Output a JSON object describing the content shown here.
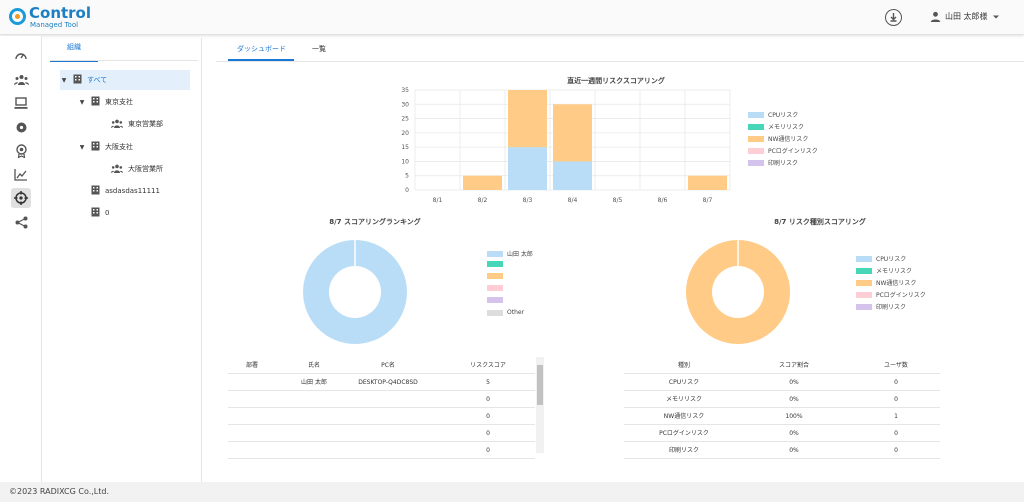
{
  "app": {
    "logo_title": "Control",
    "logo_subtitle": "Managed Tool",
    "user_name": "山田 太郎様"
  },
  "sidebar": {
    "items": [
      {
        "icon": "speedometer-icon"
      },
      {
        "icon": "users-icon"
      },
      {
        "icon": "computer-icon"
      },
      {
        "icon": "disc-icon"
      },
      {
        "icon": "badge-icon"
      },
      {
        "icon": "chart-icon"
      },
      {
        "icon": "crosshair-icon",
        "active": true
      },
      {
        "icon": "share-icon"
      }
    ]
  },
  "org": {
    "tab_label": "組織",
    "tree": [
      {
        "label": "すべて",
        "level": 0,
        "caret": true,
        "type": "building",
        "selected": true
      },
      {
        "label": "東京支社",
        "level": 1,
        "caret": true,
        "type": "building"
      },
      {
        "label": "東京営業部",
        "level": 2,
        "caret": false,
        "type": "group"
      },
      {
        "label": "大阪支社",
        "level": 1,
        "caret": true,
        "type": "building"
      },
      {
        "label": "大阪営業所",
        "level": 2,
        "caret": false,
        "type": "group"
      },
      {
        "label": "asdasdas11111",
        "level": 1,
        "caret": false,
        "type": "building"
      },
      {
        "label": "0",
        "level": 1,
        "caret": false,
        "type": "building"
      }
    ]
  },
  "main": {
    "tabs": [
      {
        "label": "ダッシュボード"
      },
      {
        "label": "一覧"
      }
    ]
  },
  "colors": {
    "cpu": "#b9ddf6",
    "memory": "#48d6b8",
    "nw": "#ffcb86",
    "pclogin": "#ffcdd6",
    "print": "#d4c3ea",
    "other": "#dddddd",
    "accent": "#1976d2"
  },
  "chart_data": [
    {
      "type": "bar",
      "title": "直近一週間リスクスコアリング",
      "categories": [
        "8/1",
        "8/2",
        "8/3",
        "8/4",
        "8/5",
        "8/6",
        "8/7"
      ],
      "ylim": [
        0,
        35
      ],
      "yticks": [
        0,
        5,
        10,
        15,
        20,
        25,
        30,
        35
      ],
      "stacked": true,
      "grid": true,
      "legend_position": "right",
      "series": [
        {
          "name": "CPUリスク",
          "color": "#b9ddf6",
          "values": [
            0,
            0,
            15,
            10,
            0,
            0,
            0
          ]
        },
        {
          "name": "メモリリスク",
          "color": "#48d6b8",
          "values": [
            0,
            0,
            0,
            0,
            0,
            0,
            0
          ]
        },
        {
          "name": "NW通信リスク",
          "color": "#ffcb86",
          "values": [
            0,
            5,
            20,
            20,
            0,
            0,
            5
          ]
        },
        {
          "name": "PCログインリスク",
          "color": "#ffcdd6",
          "values": [
            0,
            0,
            0,
            0,
            0,
            0,
            0
          ]
        },
        {
          "name": "印刷リスク",
          "color": "#d4c3ea",
          "values": [
            0,
            0,
            0,
            0,
            0,
            0,
            0
          ]
        }
      ]
    },
    {
      "type": "pie",
      "donut": true,
      "title": "8/7 スコアリングランキング",
      "legend_position": "right",
      "slices": [
        {
          "label": "山田 太郎",
          "value": 5,
          "color": "#b9ddf6"
        },
        {
          "label": "",
          "value": 0,
          "color": "#48d6b8"
        },
        {
          "label": "",
          "value": 0,
          "color": "#ffcb86"
        },
        {
          "label": "",
          "value": 0,
          "color": "#ffcdd6"
        },
        {
          "label": "",
          "value": 0,
          "color": "#d4c3ea"
        },
        {
          "label": "Other",
          "value": 0,
          "color": "#dddddd"
        }
      ]
    },
    {
      "type": "pie",
      "donut": true,
      "title": "8/7 リスク種別スコアリング",
      "legend_position": "right",
      "slices": [
        {
          "label": "CPUリスク",
          "value": 0,
          "color": "#b9ddf6"
        },
        {
          "label": "メモリリスク",
          "value": 0,
          "color": "#48d6b8"
        },
        {
          "label": "NW通信リスク",
          "value": 100,
          "color": "#ffcb86"
        },
        {
          "label": "PCログインリスク",
          "value": 0,
          "color": "#ffcdd6"
        },
        {
          "label": "印刷リスク",
          "value": 0,
          "color": "#d4c3ea"
        }
      ]
    }
  ],
  "ranking_table": {
    "headers": [
      "部署",
      "氏名",
      "PC名",
      "リスクスコア"
    ],
    "rows": [
      [
        "",
        "山田 太郎",
        "DESKTOP-Q4DC8SD",
        "5"
      ],
      [
        "",
        "",
        "",
        "0"
      ],
      [
        "",
        "",
        "",
        "0"
      ],
      [
        "",
        "",
        "",
        "0"
      ],
      [
        "",
        "",
        "",
        "0"
      ]
    ]
  },
  "type_table": {
    "headers": [
      "種別",
      "スコア割合",
      "ユーザ数"
    ],
    "rows": [
      [
        "CPUリスク",
        "0%",
        "0"
      ],
      [
        "メモリリスク",
        "0%",
        "0"
      ],
      [
        "NW通信リスク",
        "100%",
        "1"
      ],
      [
        "PCログインリスク",
        "0%",
        "0"
      ],
      [
        "印刷リスク",
        "0%",
        "0"
      ]
    ]
  },
  "footer": {
    "copyright": "©2023 RADIXCG Co.,Ltd."
  }
}
